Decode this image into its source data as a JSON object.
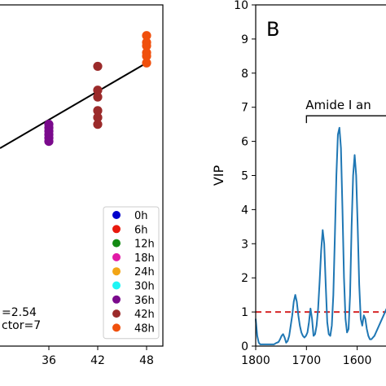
{
  "chart_data": [
    {
      "type": "scatter",
      "panel_label": "",
      "xlabel": "",
      "ylabel": "",
      "xlim": [
        30,
        50
      ],
      "ylim": [
        0,
        10
      ],
      "x_ticks": [
        36,
        42,
        48
      ],
      "legend": {
        "placement": "lower-right",
        "entries": [
          {
            "label": "0h",
            "color": "#0000cc"
          },
          {
            "label": "6h",
            "color": "#e8190e"
          },
          {
            "label": "12h",
            "color": "#138a13"
          },
          {
            "label": "18h",
            "color": "#e11aa6"
          },
          {
            "label": "24h",
            "color": "#f2a516"
          },
          {
            "label": "30h",
            "color": "#1ef5f5"
          },
          {
            "label": "36h",
            "color": "#7a0a8c"
          },
          {
            "label": "42h",
            "color": "#9b2a2a"
          },
          {
            "label": "48h",
            "color": "#f0500d"
          }
        ]
      },
      "series": [
        {
          "name": "36h",
          "color": "#7a0a8c",
          "x": 36,
          "values": [
            6.5,
            6.4,
            6.3,
            6.2,
            6.1,
            6.0
          ]
        },
        {
          "name": "42h",
          "color": "#9b2a2a",
          "x": 42,
          "values": [
            8.2,
            7.5,
            7.3,
            6.9,
            6.7,
            6.5
          ]
        },
        {
          "name": "48h",
          "color": "#f0500d",
          "x": 48,
          "values": [
            9.1,
            8.9,
            8.8,
            8.6,
            8.5,
            8.3
          ]
        }
      ],
      "fit_line": {
        "x": [
          30,
          48
        ],
        "y": [
          5.8,
          8.3
        ]
      },
      "annotations": [
        "=2.54",
        "ctor=7"
      ]
    },
    {
      "type": "line",
      "panel_label": "B",
      "xlabel": "",
      "ylabel": "VIP",
      "xlim": [
        1800,
        1540
      ],
      "ylim": [
        0,
        10
      ],
      "x_ticks": [
        1800,
        1700,
        1600
      ],
      "y_ticks": [
        0,
        1,
        2,
        3,
        4,
        5,
        6,
        7,
        8,
        9,
        10
      ],
      "threshold": {
        "y": 1,
        "color": "#d62728"
      },
      "bracket": {
        "label": "Amide I an",
        "x_start": 1700,
        "y": 6.75
      },
      "series": [
        {
          "color": "#1f77b4",
          "x": [
            1800,
            1797,
            1794,
            1791,
            1788,
            1785,
            1782,
            1779,
            1776,
            1773,
            1770,
            1767,
            1764,
            1761,
            1758,
            1755,
            1752,
            1749,
            1746,
            1743,
            1740,
            1737,
            1734,
            1731,
            1728,
            1725,
            1722,
            1719,
            1716,
            1713,
            1710,
            1707,
            1704,
            1701,
            1698,
            1695,
            1692,
            1689,
            1686,
            1683,
            1680,
            1677,
            1674,
            1671,
            1668,
            1665,
            1662,
            1659,
            1656,
            1653,
            1650,
            1647,
            1644,
            1641,
            1638,
            1635,
            1632,
            1629,
            1626,
            1623,
            1620,
            1617,
            1614,
            1611,
            1608,
            1605,
            1602,
            1599,
            1596,
            1593,
            1590,
            1587,
            1584,
            1581,
            1578,
            1575,
            1572,
            1569,
            1566,
            1563,
            1560,
            1557,
            1554,
            1551,
            1548,
            1545,
            1542
          ],
          "values": [
            0.8,
            0.3,
            0.1,
            0.05,
            0.05,
            0.05,
            0.05,
            0.05,
            0.05,
            0.05,
            0.05,
            0.05,
            0.05,
            0.08,
            0.1,
            0.12,
            0.2,
            0.3,
            0.35,
            0.25,
            0.1,
            0.15,
            0.3,
            0.6,
            0.9,
            1.3,
            1.5,
            1.3,
            0.9,
            0.6,
            0.4,
            0.3,
            0.25,
            0.3,
            0.4,
            0.7,
            1.1,
            0.8,
            0.3,
            0.35,
            0.6,
            1.1,
            1.9,
            2.8,
            3.4,
            3.0,
            1.8,
            0.7,
            0.35,
            0.3,
            0.6,
            1.5,
            3.2,
            5.0,
            6.2,
            6.4,
            5.8,
            4.0,
            2.0,
            0.8,
            0.4,
            0.5,
            1.5,
            3.5,
            5.0,
            5.6,
            5.0,
            3.5,
            1.8,
            0.8,
            0.6,
            0.9,
            0.8,
            0.5,
            0.3,
            0.2,
            0.2,
            0.25,
            0.3,
            0.4,
            0.5,
            0.6,
            0.7,
            0.8,
            0.9,
            1.0,
            1.1
          ]
        }
      ]
    }
  ]
}
